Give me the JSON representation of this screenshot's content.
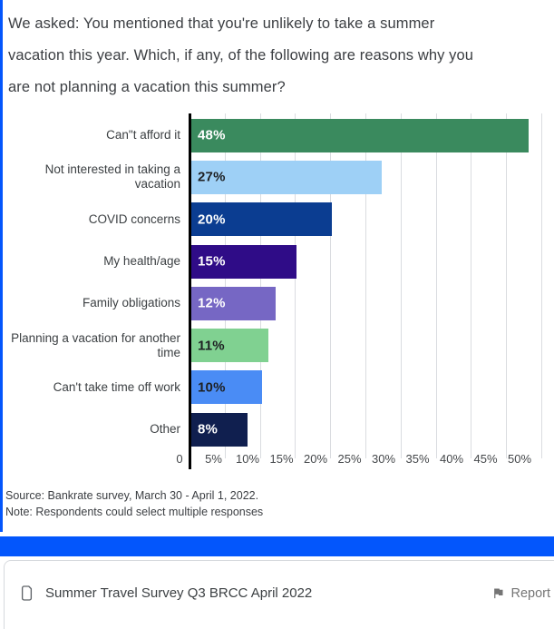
{
  "title": "We asked: You mentioned that you're unlikely to take a summer\nvacation this year. Which, if any, of the following are reasons why you\nare not planning a vacation this summer?",
  "chart_data": {
    "type": "bar",
    "orientation": "horizontal",
    "categories": [
      "Can\"t afford it",
      "Not interested in taking a vacation",
      "COVID concerns",
      "My health/age",
      "Family obligations",
      "Planning a vacation for another\ntime",
      "Can't take time off work",
      "Other"
    ],
    "values": [
      48,
      27,
      20,
      15,
      12,
      11,
      10,
      8
    ],
    "value_labels": [
      "48%",
      "27%",
      "20%",
      "15%",
      "12%",
      "11%",
      "10%",
      "8%"
    ],
    "bar_colors": [
      "#3a8a5e",
      "#9ed0f6",
      "#0b3d91",
      "#2f0c87",
      "#7667c4",
      "#80d191",
      "#4a8cf5",
      "#101f4f"
    ],
    "value_label_colors": [
      "#ffffff",
      "#1e2023",
      "#ffffff",
      "#ffffff",
      "#ffffff",
      "#1e2023",
      "#1e2023",
      "#ffffff"
    ],
    "x_tick_labels": [
      "0",
      "5%",
      "10%",
      "15%",
      "20%",
      "25%",
      "30%",
      "35%",
      "40%",
      "45%",
      "50%"
    ],
    "xlim": [
      0,
      51.7
    ],
    "grid": true,
    "legend": false,
    "ylabel": "",
    "xlabel": ""
  },
  "source_line": "Source: Bankrate survey, March 30 - April 1, 2022.",
  "note_line": "Note: Respondents could select multiple responses",
  "footer": {
    "title": "Summer Travel Survey Q3 BRCC April 2022",
    "report_label": "Report"
  },
  "colors": {
    "accent_blue": "#0356fc",
    "grid_line": "#dadce0",
    "axis_line": "#000000",
    "text_dark": "#3c4043",
    "text_gray": "#757575"
  }
}
